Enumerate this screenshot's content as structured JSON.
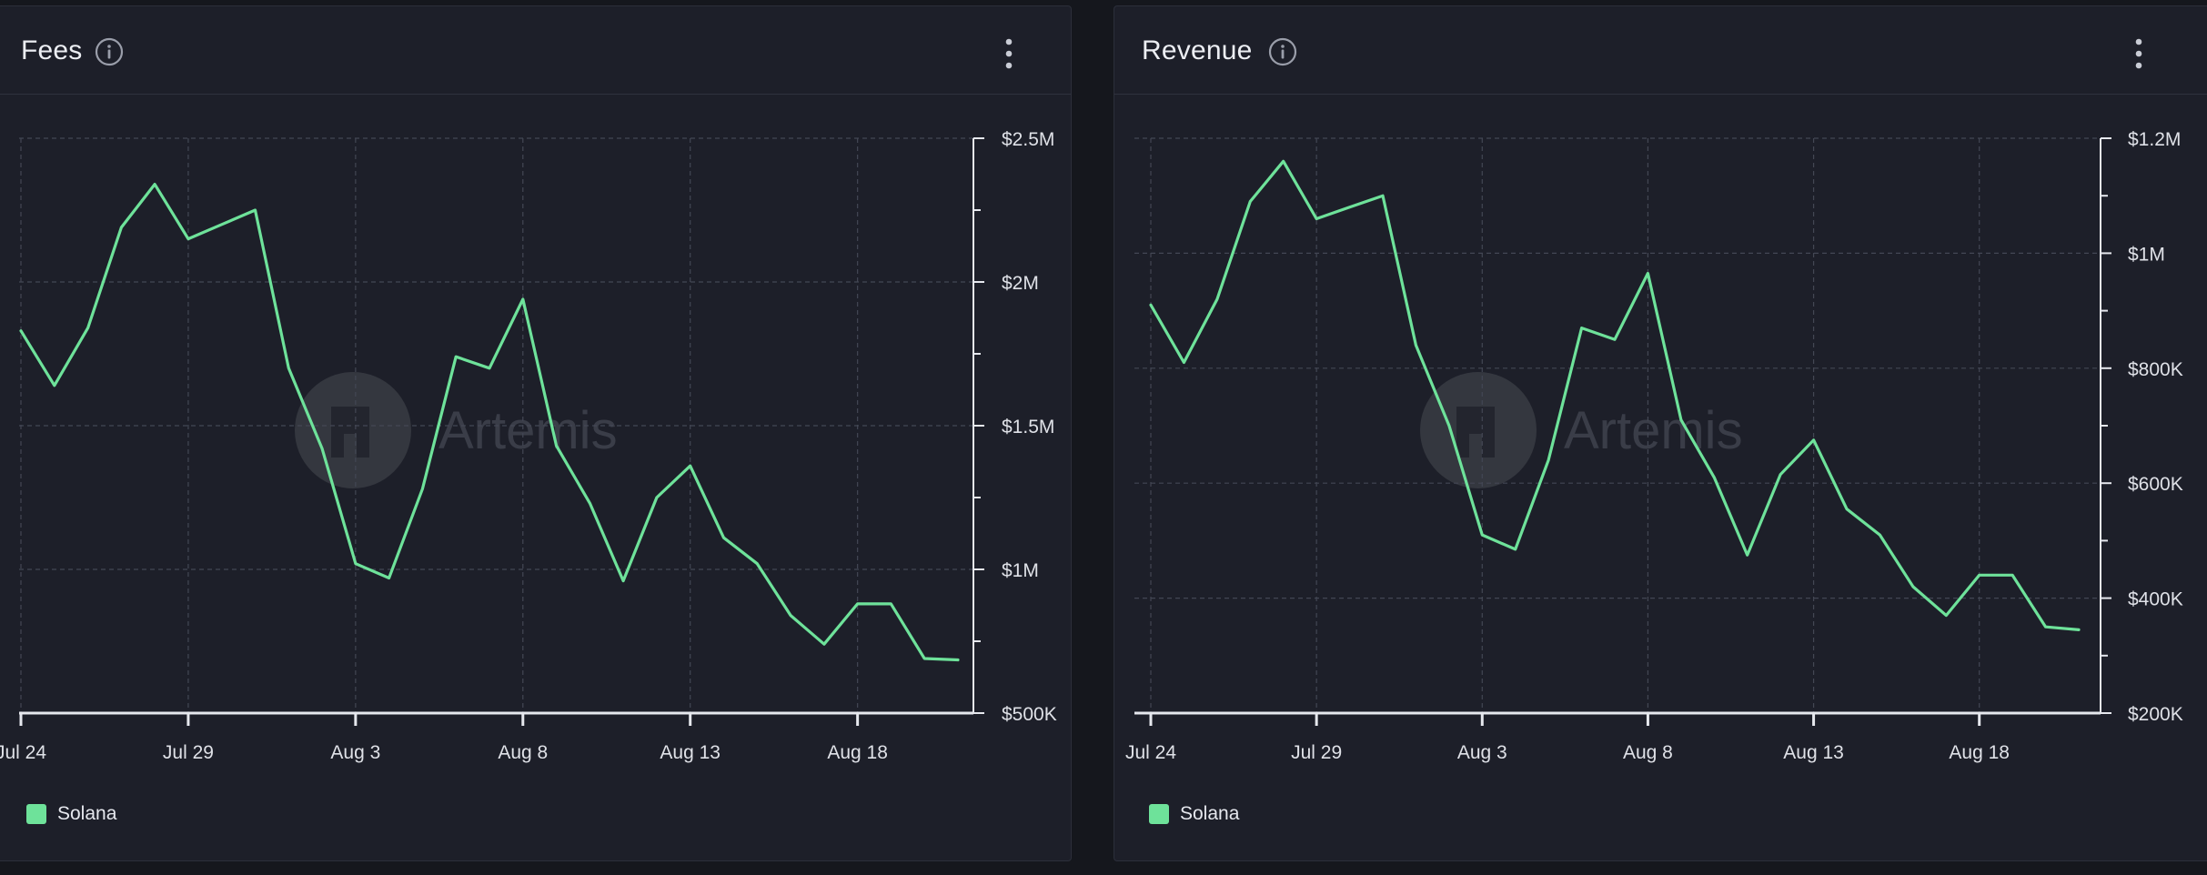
{
  "colors": {
    "series": "#6ee29a",
    "panel_bg": "#1d1f29",
    "grid": "#434754",
    "axis": "#e6e8ee"
  },
  "watermark": "Artemis",
  "panels": [
    {
      "title": "Fees",
      "info_icon": "info-circle-icon",
      "menu_icon": "kebab-menu-icon",
      "legend": "Solana"
    },
    {
      "title": "Revenue",
      "info_icon": "info-circle-icon",
      "menu_icon": "kebab-menu-icon",
      "legend": "Solana"
    }
  ],
  "chart_data": [
    {
      "type": "line",
      "title": "Fees",
      "x": [
        "Jul 24",
        "Jul 25",
        "Jul 26",
        "Jul 27",
        "Jul 28",
        "Jul 29",
        "Jul 30",
        "Jul 31",
        "Aug 1",
        "Aug 2",
        "Aug 3",
        "Aug 4",
        "Aug 5",
        "Aug 6",
        "Aug 7",
        "Aug 8",
        "Aug 9",
        "Aug 10",
        "Aug 11",
        "Aug 12",
        "Aug 13",
        "Aug 14",
        "Aug 15",
        "Aug 16",
        "Aug 17",
        "Aug 18",
        "Aug 19",
        "Aug 20",
        "Aug 21"
      ],
      "series": [
        {
          "name": "Solana",
          "values": [
            1830000,
            1640000,
            1840000,
            2190000,
            2340000,
            2150000,
            2200000,
            2250000,
            1700000,
            1420000,
            1020000,
            970000,
            1280000,
            1740000,
            1700000,
            1940000,
            1430000,
            1230000,
            960000,
            1250000,
            1360000,
            1110000,
            1020000,
            840000,
            740000,
            880000,
            880000,
            690000,
            685000
          ]
        }
      ],
      "x_ticks": [
        "Jul 24",
        "Jul 29",
        "Aug 3",
        "Aug 8",
        "Aug 13",
        "Aug 18"
      ],
      "y_ticks": [
        "$500K",
        "$1M",
        "$1.5M",
        "$2M",
        "$2.5M"
      ],
      "y_tick_values": [
        500000,
        1000000,
        1500000,
        2000000,
        2500000
      ],
      "ylim": [
        500000,
        2500000
      ],
      "y_axis_position": "right",
      "grid": true,
      "legend_position": "bottom-left"
    },
    {
      "type": "line",
      "title": "Revenue",
      "x": [
        "Jul 24",
        "Jul 25",
        "Jul 26",
        "Jul 27",
        "Jul 28",
        "Jul 29",
        "Jul 30",
        "Jul 31",
        "Aug 1",
        "Aug 2",
        "Aug 3",
        "Aug 4",
        "Aug 5",
        "Aug 6",
        "Aug 7",
        "Aug 8",
        "Aug 9",
        "Aug 10",
        "Aug 11",
        "Aug 12",
        "Aug 13",
        "Aug 14",
        "Aug 15",
        "Aug 16",
        "Aug 17",
        "Aug 18",
        "Aug 19",
        "Aug 20",
        "Aug 21"
      ],
      "series": [
        {
          "name": "Solana",
          "values": [
            910000,
            810000,
            920000,
            1090000,
            1160000,
            1060000,
            1080000,
            1100000,
            840000,
            700000,
            510000,
            485000,
            640000,
            870000,
            850000,
            965000,
            710000,
            610000,
            475000,
            615000,
            675000,
            555000,
            510000,
            420000,
            370000,
            440000,
            440000,
            350000,
            345000
          ]
        }
      ],
      "x_ticks": [
        "Jul 24",
        "Jul 29",
        "Aug 3",
        "Aug 8",
        "Aug 13",
        "Aug 18"
      ],
      "y_ticks": [
        "$200K",
        "$400K",
        "$600K",
        "$800K",
        "$1M",
        "$1.2M"
      ],
      "y_tick_values": [
        200000,
        400000,
        600000,
        800000,
        1000000,
        1200000
      ],
      "ylim": [
        200000,
        1200000
      ],
      "y_axis_position": "right",
      "grid": true,
      "legend_position": "bottom-left"
    }
  ]
}
